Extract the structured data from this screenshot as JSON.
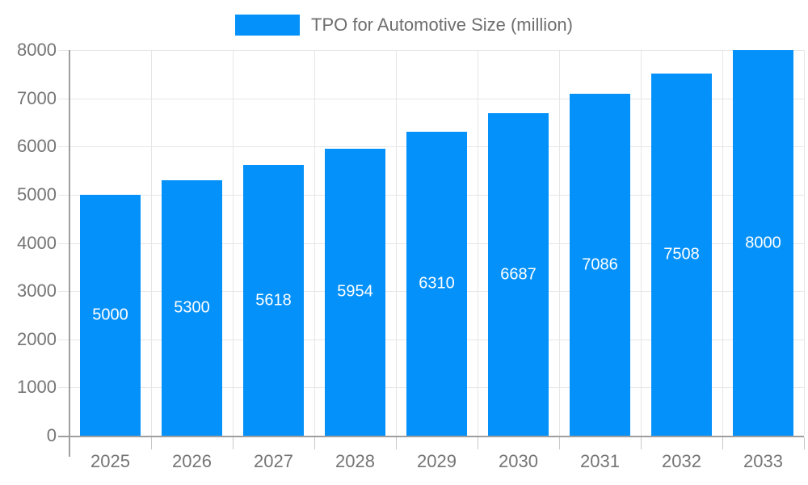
{
  "chart_data": {
    "type": "bar",
    "title": "TPO for Automotive Size (million)",
    "categories": [
      "2025",
      "2026",
      "2027",
      "2028",
      "2029",
      "2030",
      "2031",
      "2032",
      "2033"
    ],
    "values": [
      5000,
      5300,
      5618,
      5954,
      6310,
      6687,
      7086,
      7508,
      8000
    ],
    "data_labels": [
      "5000",
      "5300",
      "5618",
      "5954",
      "6310",
      "6687",
      "7086",
      "7508",
      "8000"
    ],
    "xlabel": "",
    "ylabel": "",
    "ylim": [
      0,
      8000
    ],
    "ytick_step": 1000,
    "yticks": [
      "0",
      "1000",
      "2000",
      "3000",
      "4000",
      "5000",
      "6000",
      "7000",
      "8000"
    ],
    "grid": true,
    "legend_position": "top",
    "colors": {
      "bar": "#0591fa",
      "data_label": "#ffffff",
      "axis_text": "#757575",
      "legend_text": "#6e6e6e",
      "gridline": "#e6e6e6",
      "axis_line": "#9e9e9e",
      "minor_tick": "#c8c8c8"
    }
  }
}
